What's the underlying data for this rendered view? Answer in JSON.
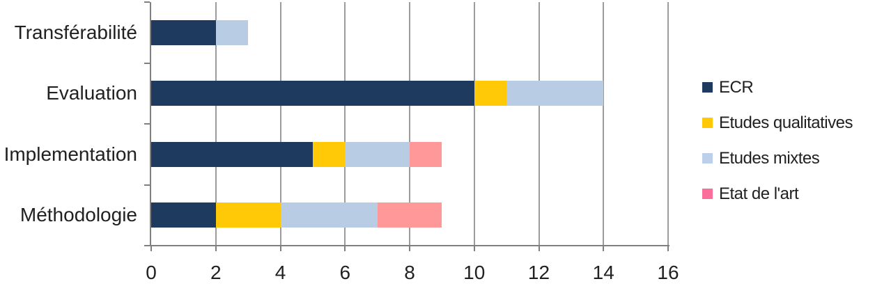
{
  "chart_data": {
    "type": "bar",
    "orientation": "horizontal",
    "stacked": true,
    "title": "",
    "xlabel": "",
    "ylabel": "",
    "categories": [
      "Transférabilité",
      "Evaluation",
      "Implementation",
      "Méthodologie"
    ],
    "series": [
      {
        "name": "ECR",
        "values": [
          2,
          10,
          5,
          2
        ],
        "bar_color": "#1E3A5F",
        "swatch_color": "#1E3A5F"
      },
      {
        "name": "Etudes qualitatives",
        "values": [
          0,
          1,
          1,
          2
        ],
        "bar_color": "#FFC907",
        "swatch_color": "#FFC907"
      },
      {
        "name": "Etudes mixtes",
        "values": [
          1,
          3,
          2,
          3
        ],
        "bar_color": "#B8CCE4",
        "swatch_color": "#BDD0E9"
      },
      {
        "name": "Etat de l'art",
        "values": [
          0,
          0,
          1,
          2
        ],
        "bar_color": "#FF9999",
        "swatch_color": "#FA6E9B"
      }
    ],
    "totals": [
      3,
      14,
      9,
      9
    ],
    "x_ticks": [
      "0",
      "2",
      "4",
      "6",
      "8",
      "10",
      "12",
      "14",
      "16"
    ],
    "xlim": [
      0,
      16
    ],
    "grid": "vertical-only",
    "legend_position": "right"
  },
  "styles": {
    "background": "#FFFFFF",
    "gridline_color": "#9C9C9C",
    "axis_color": "#7F7F7F",
    "text_color": "#212121"
  }
}
